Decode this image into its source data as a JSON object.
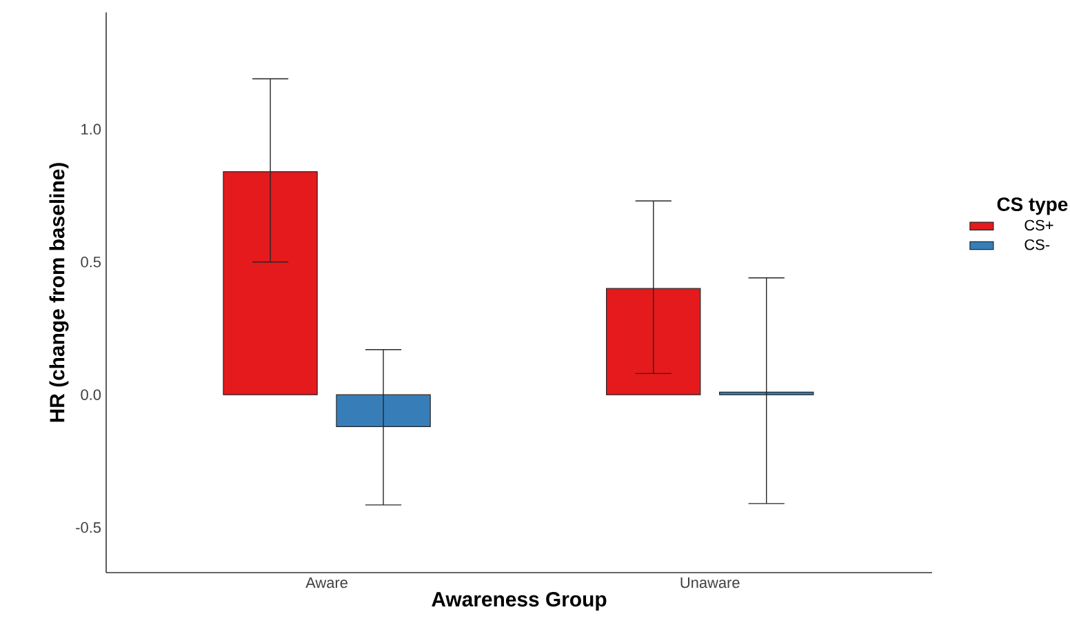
{
  "chart_data": {
    "type": "bar",
    "xlabel": "Awareness Group",
    "ylabel": "HR (change from baseline)",
    "legend_title": "CS type",
    "legend": "right",
    "categories": [
      "Aware",
      "Unaware"
    ],
    "series": [
      {
        "name": "CS+",
        "color": "#e41a1c",
        "values": [
          0.84,
          0.4
        ],
        "errors": [
          [
            0.5,
            1.19
          ],
          [
            0.08,
            0.73
          ]
        ]
      },
      {
        "name": "CS-",
        "color": "#377eb8",
        "values": [
          -0.12,
          0.01
        ],
        "errors": [
          [
            -0.415,
            0.17
          ],
          [
            -0.41,
            0.44
          ]
        ]
      }
    ],
    "ylim": [
      -0.67,
      1.44
    ],
    "yticks": [
      -0.5,
      {
        "value": 0,
        "label": "0.0"
      },
      0.5,
      {
        "value": 1,
        "label": "1.0"
      }
    ],
    "grid": false
  }
}
